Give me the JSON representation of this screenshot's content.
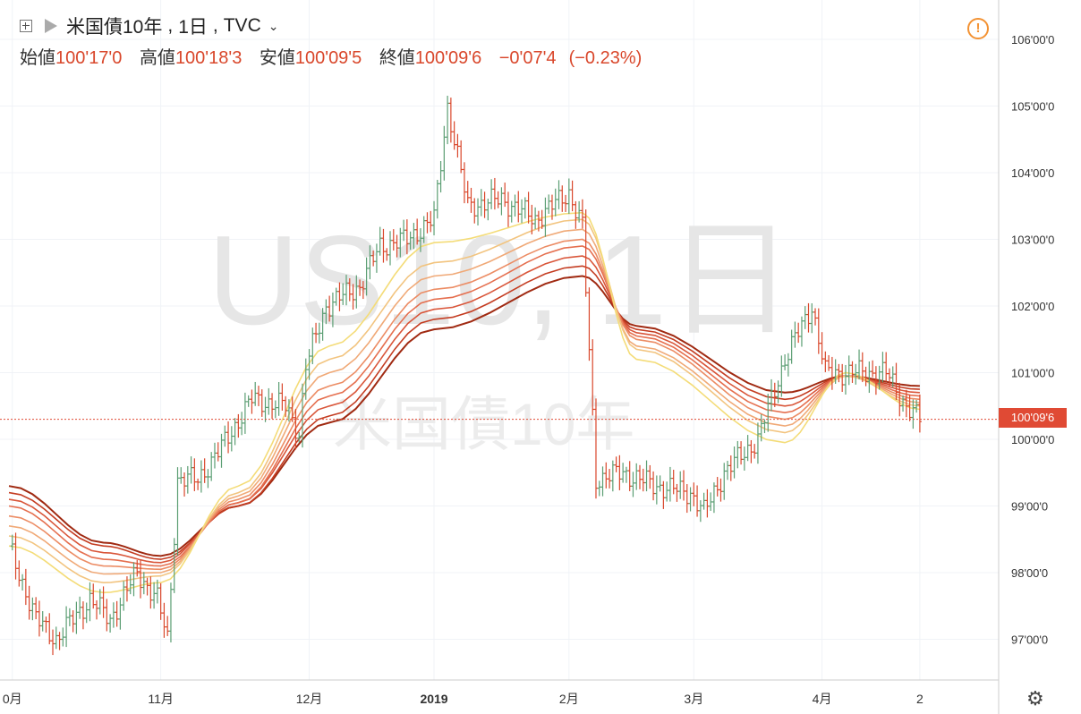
{
  "header": {
    "symbol": "米国債10年",
    "interval": "1日",
    "exchange": "TVC",
    "open_label": "始値",
    "open_value": "100'17'0",
    "high_label": "高値",
    "high_value": "100'18'3",
    "low_label": "安値",
    "low_value": "100'09'5",
    "close_label": "終値",
    "close_value": "100'09'6",
    "change": "−0'07'4",
    "change_pct": "(−0.23%)"
  },
  "watermark": {
    "main": "US10, 1日",
    "sub": "米国債10年"
  },
  "last_price_label": "100'09'6",
  "colors": {
    "up": "#5b9e73",
    "down": "#d9472b",
    "last_price": "#e04a34",
    "ribbon": [
      "#a02a12",
      "#c43d22",
      "#d9563a",
      "#e56f4f",
      "#ec8c64",
      "#f0a977",
      "#f2c47f",
      "#f4dc78"
    ]
  },
  "icons": [
    "expand-icon",
    "flag-icon",
    "chevron-down-icon",
    "alert-icon",
    "settings-icon"
  ],
  "chart_data": {
    "type": "line",
    "y_axis": {
      "min": 97,
      "max": 106,
      "ticks": [
        106,
        105,
        104,
        103,
        102,
        101,
        100,
        99,
        98,
        97
      ],
      "tick_labels": [
        "106'00'0",
        "105'00'0",
        "104'00'0",
        "103'00'0",
        "102'00'0",
        "101'00'0",
        "100'00'0",
        "99'00'0",
        "98'00'0",
        "97'00'0"
      ]
    },
    "x_axis": {
      "tick_labels": [
        "0月",
        "11月",
        "12月",
        "2019",
        "2月",
        "3月",
        "4月",
        "2"
      ],
      "tick_bar_index": [
        1,
        45,
        89,
        126,
        166,
        203,
        241,
        270
      ]
    },
    "last_price": 100.3,
    "ribbon_series": [
      {
        "name": "",
        "values": [
          99.3,
          98.45,
          98.25,
          99.0,
          100.25,
          101.65,
          102.45,
          101.7,
          100.7,
          100.95,
          100.8
        ]
      },
      {
        "name": "",
        "values": [
          99.2,
          98.4,
          98.2,
          99.0,
          100.35,
          101.8,
          102.6,
          101.65,
          100.6,
          100.95,
          100.75
        ]
      },
      {
        "name": "",
        "values": [
          99.1,
          98.3,
          98.15,
          99.05,
          100.5,
          101.95,
          102.75,
          101.6,
          100.5,
          100.95,
          100.7
        ]
      },
      {
        "name": "",
        "values": [
          99.0,
          98.2,
          98.1,
          99.05,
          100.65,
          102.1,
          102.9,
          101.55,
          100.4,
          100.95,
          100.65
        ]
      },
      {
        "name": "",
        "values": [
          98.85,
          98.1,
          98.05,
          99.1,
          100.8,
          102.25,
          103.0,
          101.5,
          100.3,
          100.95,
          100.6
        ]
      },
      {
        "name": "",
        "values": [
          98.7,
          97.98,
          98.0,
          99.15,
          101.0,
          102.45,
          103.15,
          101.4,
          100.2,
          100.95,
          100.55
        ]
      },
      {
        "name": "",
        "values": [
          98.55,
          97.85,
          97.95,
          99.2,
          101.2,
          102.65,
          103.3,
          101.35,
          100.1,
          100.95,
          100.5
        ]
      },
      {
        "name": "",
        "values": [
          98.4,
          97.7,
          97.85,
          99.3,
          101.4,
          102.95,
          103.4,
          101.2,
          99.95,
          101.0,
          100.45
        ]
      }
    ],
    "ribbon_x_bar_index": [
      0,
      28,
      45,
      68,
      95,
      126,
      170,
      186,
      230,
      248,
      270
    ],
    "price_path": [
      [
        0,
        98.4
      ],
      [
        8,
        97.3
      ],
      [
        14,
        97.0
      ],
      [
        24,
        97.6
      ],
      [
        30,
        97.3
      ],
      [
        38,
        98.0
      ],
      [
        44,
        97.6
      ],
      [
        47,
        97.0
      ],
      [
        50,
        99.4
      ],
      [
        56,
        99.4
      ],
      [
        62,
        99.8
      ],
      [
        72,
        100.6
      ],
      [
        82,
        100.5
      ],
      [
        86,
        100.1
      ],
      [
        88,
        101.1
      ],
      [
        94,
        102.0
      ],
      [
        104,
        102.3
      ],
      [
        110,
        102.9
      ],
      [
        118,
        103.0
      ],
      [
        126,
        103.3
      ],
      [
        130,
        105.0
      ],
      [
        136,
        103.5
      ],
      [
        146,
        103.6
      ],
      [
        156,
        103.3
      ],
      [
        166,
        103.7
      ],
      [
        170,
        103.2
      ],
      [
        174,
        99.4
      ],
      [
        182,
        99.5
      ],
      [
        192,
        99.3
      ],
      [
        202,
        99.2
      ],
      [
        206,
        98.9
      ],
      [
        212,
        99.5
      ],
      [
        222,
        100.0
      ],
      [
        230,
        101.2
      ],
      [
        238,
        102.0
      ],
      [
        242,
        101.0
      ],
      [
        252,
        101.0
      ],
      [
        260,
        101.0
      ],
      [
        266,
        100.5
      ],
      [
        270,
        100.3
      ]
    ]
  }
}
